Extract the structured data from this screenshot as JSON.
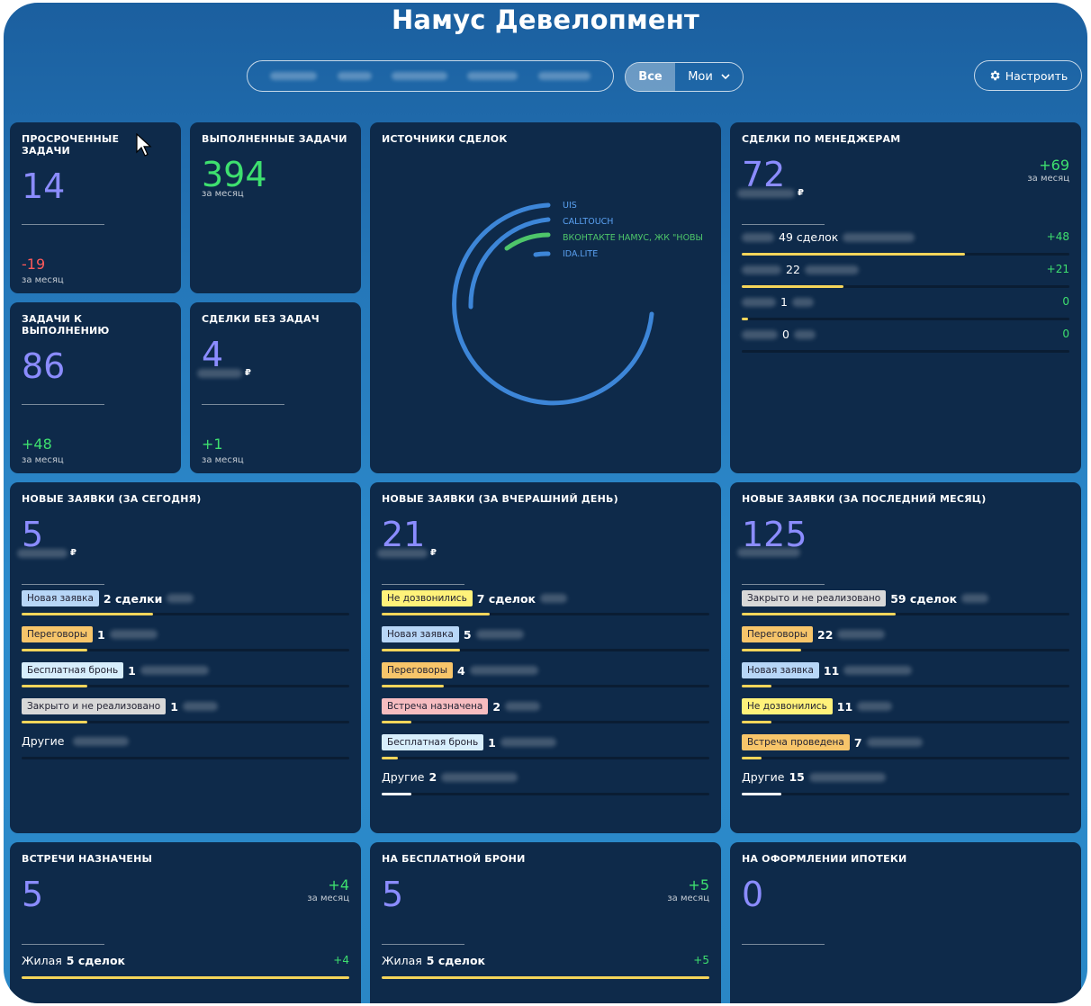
{
  "header": {
    "title": "Намус Девелопмент",
    "filter_all": "Все",
    "filter_mine": "Мои",
    "settings": "Настроить"
  },
  "colors": {
    "card": "#0e2a4a",
    "purple": "#8b8cff",
    "green": "#3ee06f",
    "red": "#ff5a5a",
    "bar_yellow": "#f5d55a",
    "bar_white": "#ffffff"
  },
  "cards": {
    "overdue": {
      "title": "Просроченные задачи",
      "value": "14",
      "delta": "-19",
      "period": "за месяц"
    },
    "done": {
      "title": "Выполненные задачи",
      "value": "394",
      "period": "за месяц"
    },
    "todo": {
      "title": "Задачи к выполнению",
      "value": "86",
      "delta": "+48",
      "period": "за месяц"
    },
    "notasks": {
      "title": "Сделки без задач",
      "value": "4",
      "currency": "₽",
      "delta": "+1",
      "period": "за месяц"
    },
    "sources": {
      "title": "Источники сделок",
      "legend": [
        "UIS",
        "CALLTOUCH",
        "ВКОНТАКТЕ НАМУС, ЖК \"НОВЫ",
        "IDA.LITE"
      ]
    },
    "managers": {
      "title": "Сделки по менеджерам",
      "value": "72",
      "currency": "₽",
      "delta": "+69",
      "period": "за месяц",
      "rows": [
        {
          "label": "49 сделок",
          "delta": "+48",
          "fill": 0.68
        },
        {
          "label": "22",
          "delta": "+21",
          "fill": 0.31
        },
        {
          "label": "1",
          "delta": "0",
          "fill": 0.02
        },
        {
          "label": "0",
          "delta": "0",
          "fill": 0
        }
      ]
    },
    "today": {
      "title": "Новые заявки (за сегодня)",
      "value": "5",
      "currency": "₽",
      "rows": [
        {
          "tag": "Новая заявка",
          "count": "2 сделки",
          "fill": 0.4
        },
        {
          "tag": "Переговоры",
          "count": "1",
          "fill": 0.2
        },
        {
          "tag": "Бесплатная бронь",
          "count": "1",
          "fill": 0.2
        },
        {
          "tag": "Закрыто и не реализовано",
          "count": "1",
          "fill": 0.2
        },
        {
          "tag": "",
          "other": "Другие",
          "count": "",
          "fill": 0
        }
      ]
    },
    "yesterday": {
      "title": "Новые заявки (за вчерашний день)",
      "value": "21",
      "currency": "₽",
      "rows": [
        {
          "tag": "Не дозвонились",
          "count": "7 сделок",
          "fill": 0.33
        },
        {
          "tag": "Новая заявка",
          "count": "5",
          "fill": 0.24
        },
        {
          "tag": "Переговоры",
          "count": "4",
          "fill": 0.19
        },
        {
          "tag": "Встреча назначена",
          "count": "2",
          "fill": 0.09
        },
        {
          "tag": "Бесплатная бронь",
          "count": "1",
          "fill": 0.05
        },
        {
          "tag": "",
          "other": "Другие",
          "count": "2",
          "fill": 0.09
        }
      ]
    },
    "month": {
      "title": "Новые заявки (за последний месяц)",
      "value": "125",
      "rows": [
        {
          "tag": "Закрыто и не реализовано",
          "count": "59 сделок",
          "fill": 0.47
        },
        {
          "tag": "Переговоры",
          "count": "22",
          "fill": 0.18
        },
        {
          "tag": "Новая заявка",
          "count": "11",
          "fill": 0.09
        },
        {
          "tag": "Не дозвонились",
          "count": "11",
          "fill": 0.09
        },
        {
          "tag": "Встреча проведена",
          "count": "7",
          "fill": 0.06
        },
        {
          "tag": "",
          "other": "Другие",
          "count": "15",
          "fill": 0.12
        }
      ]
    },
    "meetings": {
      "title": "Встречи назначены",
      "value": "5",
      "delta": "+4",
      "period": "за месяц",
      "row_label": "Жилая",
      "row_count": "5 сделок",
      "row_delta": "+4"
    },
    "freebook": {
      "title": "На бесплатной брони",
      "value": "5",
      "delta": "+5",
      "period": "за месяц",
      "row_label": "Жилая",
      "row_count": "5 сделок",
      "row_delta": "+5"
    },
    "mortgage": {
      "title": "На оформлении ипотеки",
      "value": "0"
    }
  },
  "tag_colors": {
    "Новая заявка": "#b7d6f7",
    "Переговоры": "#f7c56a",
    "Бесплатная бронь": "#d7eefc",
    "Закрыто и не реализовано": "#d8d8d8",
    "Не дозвонились": "#fff27a",
    "Встреча назначена": "#f6bcc0",
    "Встреча проведена": "#f7c56a"
  }
}
